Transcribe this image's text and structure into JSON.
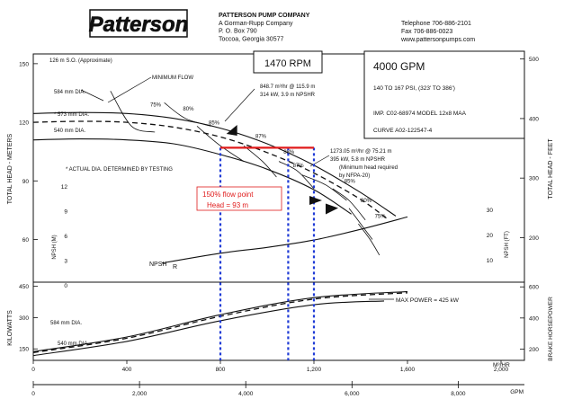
{
  "header": {
    "logo_text": "Patterson",
    "company": "PATTERSON PUMP COMPANY",
    "subsidiary": "A Gorman-Rupp Company",
    "po_box": "P. O. Box 790",
    "city": "Toccoa, Georgia  30577",
    "telephone": "Telephone 706-886-2101",
    "fax": "Fax 706-886-0023",
    "website": "www.pattersonpumps.com"
  },
  "info": {
    "speed": "1470 RPM",
    "capacity": "4000 GPM",
    "pressure": "140 TO 167 PSI, (323' TO 386')",
    "model": "IMP.  C02-68974  MODEL 12x8 MAA",
    "curve": "CURVE    A02-122547-4"
  },
  "annotations": {
    "so": "126    m S.O. (Approximate)",
    "min_flow": "MINIMUM FLOW",
    "dia_584_head": "584 mm DIA.",
    "dia_573_head": "* 573 mm DIA.",
    "dia_540_head": "540 mm DIA.",
    "actual_note": "* ACTUAL DIA. DETERMINED BY TESTING",
    "op1_line1": "848.7 m³/hr @ 115.9 m",
    "op1_line2": "314 kW, 3.9 m NPSHR",
    "op2_line1": "1273.05 m³/hr @ 75.21 m",
    "op2_line2": "395 kW, 5.8 m NPSHR",
    "op2_line3": "(Minimum head required",
    "op2_line4": "by NFPA-20)",
    "flow_point_line1": "150% flow point",
    "flow_point_line2": "Head = 93 m",
    "npsh_label": "NPSH",
    "npsh_r": "R",
    "max_power": "MAX POWER = 425 kW",
    "dia_584_power": "584 mm DIA.",
    "dia_540_power": "540 mm DIA."
  },
  "chart_data": {
    "type": "line",
    "title": "1470 RPM",
    "xlabel": "M³/HR",
    "x2label": "GPM",
    "ylabel_left": "TOTAL HEAD - METERS",
    "ylabel_right": "TOTAL HEAD - FEET",
    "ylabel_npsh_left": "NPSH (M)",
    "ylabel_npsh_right": "NPSH (FT)",
    "ylabel_power_left": "KILOWATTS",
    "ylabel_power_right": "BRAKE HORSEPOWER",
    "xlim": [
      0,
      2100
    ],
    "x_ticks": [
      {
        "v": 0,
        "label": "0"
      },
      {
        "v": 400,
        "label": "400"
      },
      {
        "v": 800,
        "label": "800"
      },
      {
        "v": 1200,
        "label": "1,200"
      },
      {
        "v": 1600,
        "label": "1,600"
      },
      {
        "v": 2000,
        "label": "2,000"
      }
    ],
    "x2_ticks": [
      {
        "v": 0,
        "label": "0"
      },
      {
        "v": 2000,
        "label": "2,000"
      },
      {
        "v": 4000,
        "label": "4,000"
      },
      {
        "v": 6000,
        "label": "6,000"
      },
      {
        "v": 8000,
        "label": "8,000"
      }
    ],
    "head_ylim": [
      40,
      155
    ],
    "head_ticks_m": [
      {
        "v": 60,
        "label": "60"
      },
      {
        "v": 90,
        "label": "90"
      },
      {
        "v": 120,
        "label": "120"
      },
      {
        "v": 150,
        "label": "150"
      }
    ],
    "head_ticks_ft": [
      {
        "v": 200,
        "label": "200"
      },
      {
        "v": 300,
        "label": "300"
      },
      {
        "v": 400,
        "label": "400"
      },
      {
        "v": 500,
        "label": "500"
      }
    ],
    "npsh_ylim": [
      -3,
      15
    ],
    "npsh_ticks_m": [
      {
        "v": 0,
        "label": "0"
      },
      {
        "v": 3,
        "label": "3"
      },
      {
        "v": 6,
        "label": "6"
      },
      {
        "v": 9,
        "label": "9"
      },
      {
        "v": 12,
        "label": "12"
      }
    ],
    "npsh_ticks_ft": [
      {
        "v": 10,
        "label": "10"
      },
      {
        "v": 20,
        "label": "20"
      },
      {
        "v": 30,
        "label": "30"
      }
    ],
    "power_ylim": [
      95,
      470
    ],
    "power_ticks_kw": [
      {
        "v": 150,
        "label": "150"
      },
      {
        "v": 300,
        "label": "300"
      },
      {
        "v": 450,
        "label": "450"
      }
    ],
    "power_ticks_hp": [
      {
        "v": 200,
        "label": "200"
      },
      {
        "v": 400,
        "label": "400"
      },
      {
        "v": 600,
        "label": "600"
      }
    ],
    "head_curves": [
      {
        "name": "584 mm DIA.",
        "dash": false,
        "x": [
          0,
          200,
          400,
          600,
          800,
          1000,
          1200,
          1400,
          1550
        ],
        "y": [
          124.5,
          125,
          124.5,
          122,
          117,
          109,
          98,
          84,
          72
        ]
      },
      {
        "name": "573 mm DIA.",
        "dash": true,
        "x": [
          0,
          200,
          400,
          600,
          800,
          1000,
          1200,
          1400,
          1520
        ],
        "y": [
          120,
          120.5,
          120,
          117.5,
          112.5,
          104.5,
          94,
          80.5,
          70
        ]
      },
      {
        "name": "540 mm DIA.",
        "dash": false,
        "x": [
          0,
          200,
          400,
          600,
          800,
          1000,
          1200,
          1360
        ],
        "y": [
          111,
          111.5,
          111,
          109,
          103.5,
          96,
          85.5,
          73
        ]
      }
    ],
    "efficiency_labels": [
      {
        "label": "75%",
        "x": 500,
        "y": 128
      },
      {
        "label": "80%",
        "x": 640,
        "y": 126
      },
      {
        "label": "85%",
        "x": 750,
        "y": 119
      },
      {
        "label": "87%",
        "x": 950,
        "y": 112
      },
      {
        "label": "88%",
        "x": 1070,
        "y": 104
      },
      {
        "label": "87%",
        "x": 1110,
        "y": 97
      },
      {
        "label": "85%",
        "x": 1330,
        "y": 89
      },
      {
        "label": "80%",
        "x": 1400,
        "y": 79
      },
      {
        "label": "75%",
        "x": 1460,
        "y": 71
      }
    ],
    "npsh_curve": {
      "x": [
        550,
        800,
        1000,
        1200,
        1400,
        1600
      ],
      "y": [
        2.7,
        3.9,
        4.6,
        5.5,
        6.8,
        8.3
      ]
    },
    "power_curves": [
      {
        "name": "584 mm DIA.",
        "dash": false,
        "x": [
          0,
          400,
          800,
          1200,
          1600
        ],
        "y": [
          137,
          207,
          314,
          396,
          425
        ]
      },
      {
        "name": "573 mm DIA.",
        "dash": true,
        "x": [
          0,
          400,
          800,
          1200,
          1600
        ],
        "y": [
          132,
          201,
          306,
          389,
          419
        ]
      },
      {
        "name": "540 mm DIA.",
        "dash": false,
        "x": [
          0,
          400,
          800,
          1200,
          1500
        ],
        "y": [
          118,
          186,
          285,
          362,
          380
        ]
      }
    ],
    "operating_points": [
      {
        "name": "rated point",
        "flow": 848.7,
        "head": 115.9
      },
      {
        "name": "150% point",
        "flow": 1273.05,
        "head": 75.21
      }
    ],
    "vertical_markers": [
      800,
      1090,
      1200
    ],
    "red_line": {
      "x_start": 800,
      "x_end": 1200,
      "head": 107
    }
  }
}
